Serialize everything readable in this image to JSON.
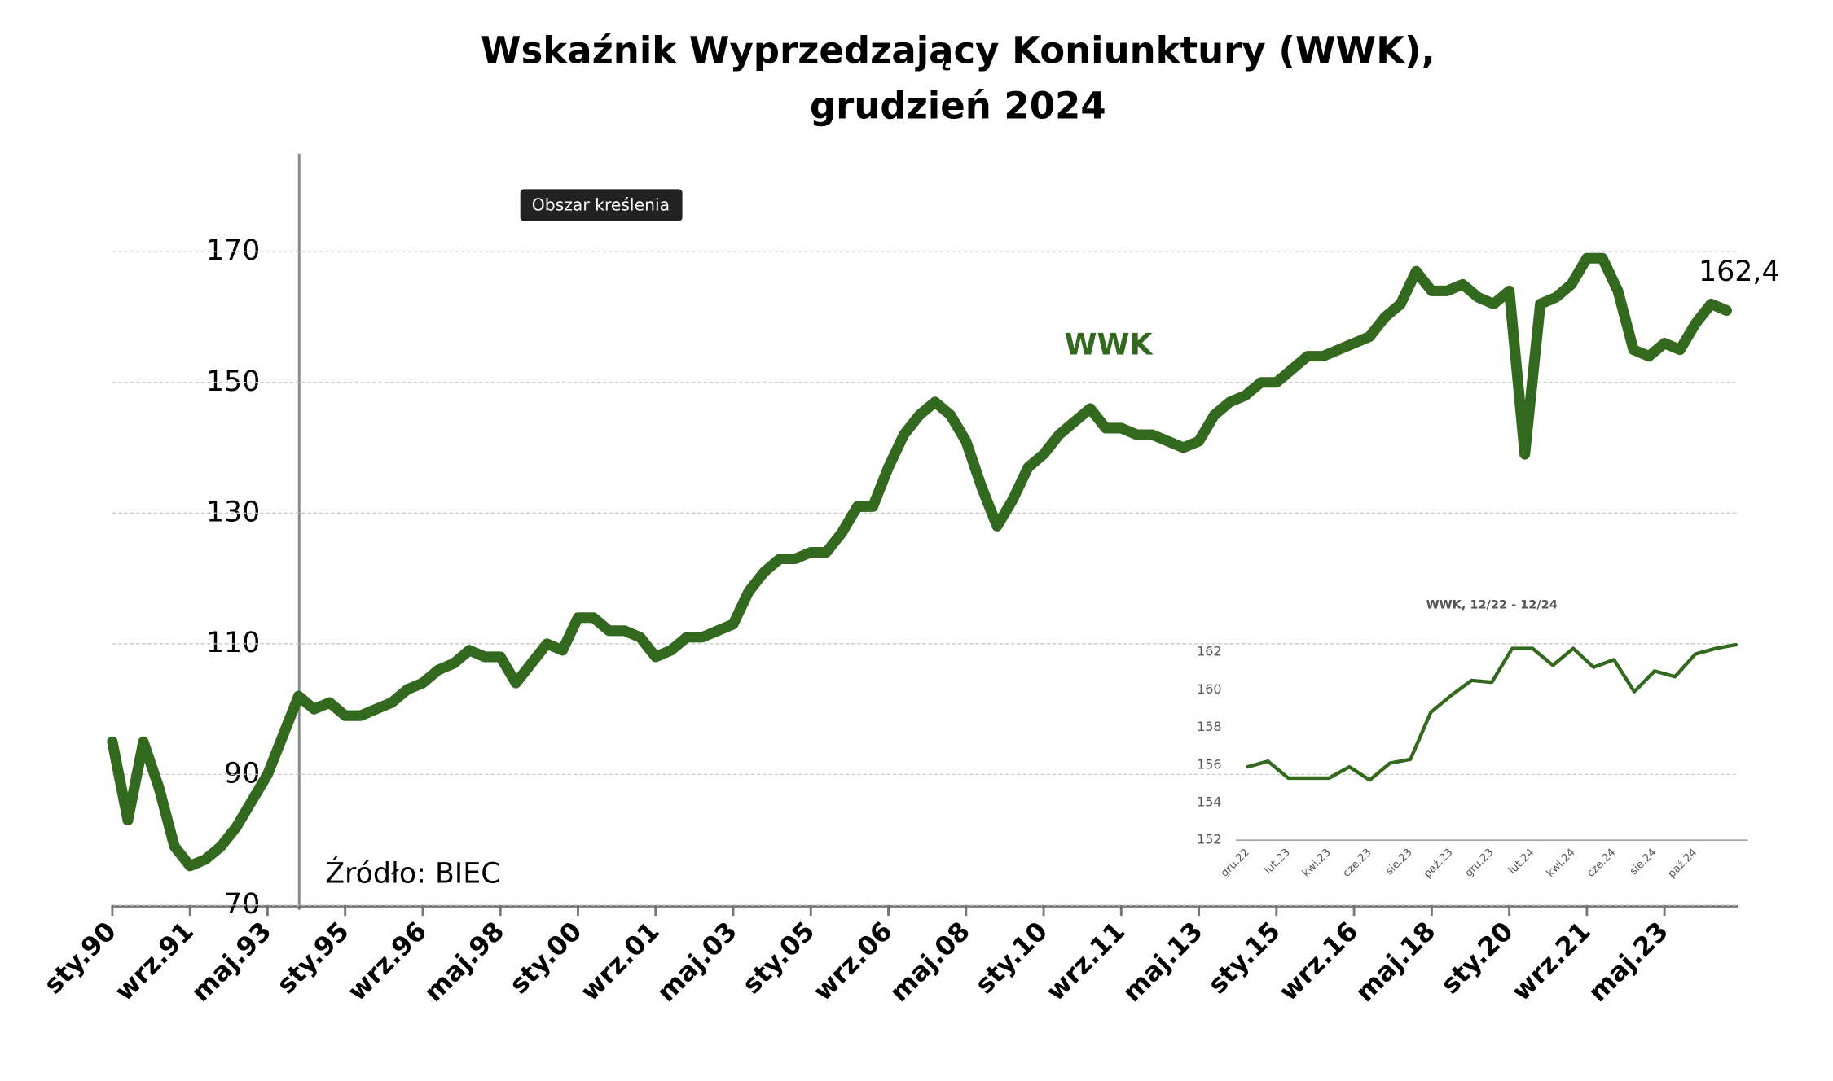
{
  "title": "Wskaźnik Wyprzedzający Koniunktury (WWK),",
  "subtitle": "grudzień 2024",
  "tooltip": "Obszar kreślenia",
  "chart_data": [
    {
      "type": "line",
      "series_label": "WWK",
      "source": "Źródło: BIEC",
      "end_label": "162,4",
      "categories": [
        "sty.90",
        null,
        null,
        null,
        null,
        "wrz.91",
        null,
        null,
        null,
        null,
        "maj.93",
        null,
        null,
        null,
        null,
        "sty.95",
        null,
        null,
        null,
        null,
        "wrz.96",
        null,
        null,
        null,
        null,
        "maj.98",
        null,
        null,
        null,
        null,
        "sty.00",
        null,
        null,
        null,
        null,
        "wrz.01",
        null,
        null,
        null,
        null,
        "maj.03",
        null,
        null,
        null,
        null,
        "sty.05",
        null,
        null,
        null,
        null,
        "wrz.06",
        null,
        null,
        null,
        null,
        "maj.08",
        null,
        null,
        null,
        null,
        "sty.10",
        null,
        null,
        null,
        null,
        "wrz.11",
        null,
        null,
        null,
        null,
        "maj.13",
        null,
        null,
        null,
        null,
        "sty.15",
        null,
        null,
        null,
        null,
        "wrz.16",
        null,
        null,
        null,
        null,
        "maj.18",
        null,
        null,
        null,
        null,
        "sty.20",
        null,
        null,
        null,
        null,
        "wrz.21",
        null,
        null,
        null,
        null,
        "maj.23",
        null,
        null,
        null,
        null
      ],
      "series": [
        {
          "name": "WWK",
          "color": "#33691e",
          "values": [
            95,
            83,
            95,
            88,
            79,
            76,
            77,
            79,
            82,
            86,
            90,
            96,
            102,
            100,
            101,
            99,
            99,
            100,
            101,
            103,
            104,
            106,
            107,
            109,
            108,
            108,
            104,
            107,
            110,
            109,
            114,
            114,
            112,
            112,
            111,
            108,
            109,
            111,
            111,
            112,
            113,
            118,
            121,
            123,
            123,
            124,
            124,
            127,
            131,
            131,
            137,
            142,
            145,
            147,
            145,
            141,
            134,
            128,
            132,
            137,
            139,
            142,
            144,
            146,
            143,
            143,
            142,
            142,
            141,
            140,
            141,
            145,
            147,
            148,
            150,
            150,
            152,
            154,
            154,
            155,
            156,
            157,
            160,
            162,
            167,
            164,
            164,
            165,
            163,
            162,
            164,
            139,
            162,
            163,
            165,
            169,
            169,
            164,
            155,
            154,
            156,
            155,
            159,
            162,
            161
          ]
        }
      ],
      "ylim": [
        70,
        185
      ],
      "yticks": [
        70,
        90,
        110,
        130,
        150,
        170
      ],
      "grid": true
    },
    {
      "type": "line",
      "title": "WWK, 12/22 - 12/24",
      "categories": [
        "gru.22",
        null,
        "lut.23",
        null,
        "kwi.23",
        null,
        "cze.23",
        null,
        "sie.23",
        null,
        "paź.23",
        null,
        "gru.23",
        null,
        "lut.24",
        null,
        "kwi.24",
        null,
        "cze.24",
        null,
        "sie.24",
        null,
        "paź.24",
        null,
        null
      ],
      "series": [
        {
          "name": "WWK",
          "color": "#33691e",
          "values": [
            155.9,
            156.2,
            155.3,
            155.3,
            155.3,
            155.9,
            155.2,
            156.1,
            156.3,
            158.8,
            159.7,
            160.5,
            160.4,
            162.2,
            162.2,
            161.3,
            162.2,
            161.2,
            161.6,
            159.9,
            161.0,
            160.7,
            161.9,
            162.2,
            162.4
          ]
        }
      ],
      "ylim": [
        152,
        163
      ],
      "yticks": [
        152,
        154,
        156,
        158,
        160,
        162
      ],
      "grid": false
    }
  ]
}
